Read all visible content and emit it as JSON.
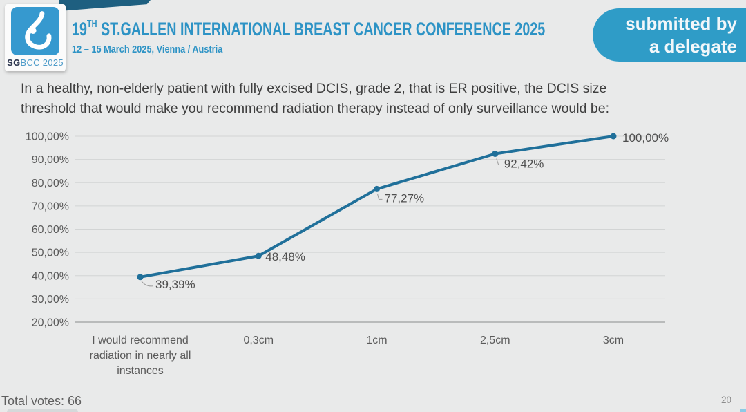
{
  "header": {
    "title_number": "19",
    "title_sup": "TH",
    "title_rest": "ST.GALLEN INTERNATIONAL BREAST CANCER CONFERENCE 2025",
    "subtitle": "12 – 15 March 2025, Vienna / Austria",
    "logo": {
      "brand_bold": "SG",
      "brand_rest": "BCC 2025"
    },
    "badge": {
      "line1": "submitted by",
      "line2": "a delegate"
    }
  },
  "question": {
    "line1": "In a healthy, non-elderly patient with fully excised DCIS, grade 2, that is ER positive, the DCIS size",
    "line2": "threshold that would make you recommend radiation therapy instead of only surveillance would be:"
  },
  "footer": {
    "total_votes_label": "Total votes:",
    "total_votes_value": "66",
    "page_number": "20"
  },
  "colors": {
    "accent_teal": "#2d93c5",
    "badge_blue": "#2f9cc7",
    "wedge_dark_teal": "#1e5f80",
    "logo_blue": "#3699cf",
    "background_gray": "#e9eaea",
    "chart_text_gray": "#5a5a5a",
    "gridline": "#d2d4d4",
    "axis_line": "#a9abab"
  },
  "chart_data": {
    "type": "line",
    "title": "",
    "xlabel": "",
    "ylabel": "",
    "categories": [
      "I would recommend radiation in nearly all instances",
      "0,3cm",
      "1cm",
      "2,5cm",
      "3cm"
    ],
    "category_lines": [
      [
        "I would recommend",
        "radiation in nearly all",
        "instances"
      ],
      [
        "0,3cm"
      ],
      [
        "1cm"
      ],
      [
        "2,5cm"
      ],
      [
        "3cm"
      ]
    ],
    "values": [
      39.39,
      48.48,
      77.27,
      92.42,
      100.0
    ],
    "value_labels": [
      "39,39%",
      "48,48%",
      "77,27%",
      "92,42%",
      "100,00%"
    ],
    "y_tick_values": [
      20,
      30,
      40,
      50,
      60,
      70,
      80,
      90,
      100
    ],
    "y_ticks": [
      "20,00%",
      "30,00%",
      "40,00%",
      "50,00%",
      "60,00%",
      "70,00%",
      "80,00%",
      "90,00%",
      "100,00%"
    ],
    "ylim": [
      20,
      100
    ],
    "grid": true,
    "legend": false,
    "line_color": "#20709a",
    "total_votes": 66
  }
}
